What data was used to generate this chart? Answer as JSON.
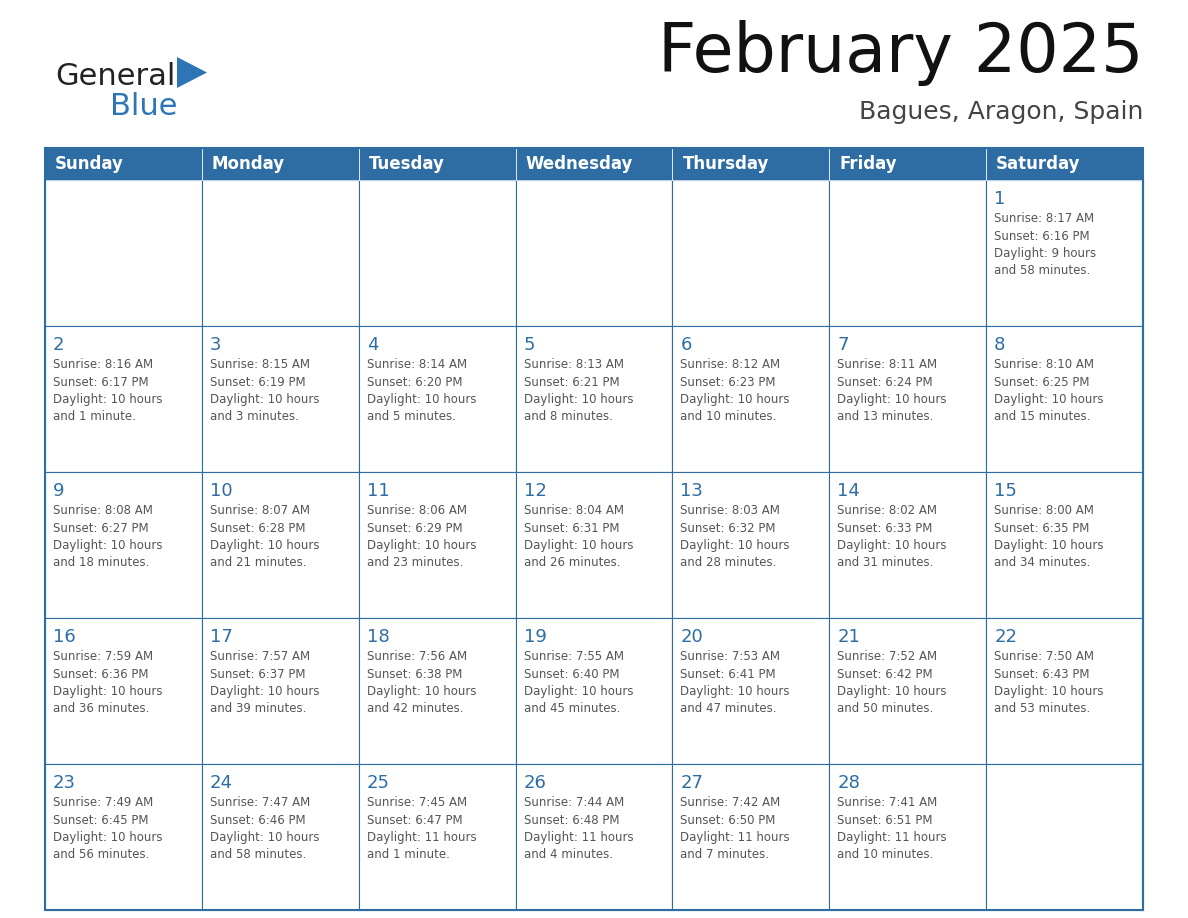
{
  "title": "February 2025",
  "subtitle": "Bagues, Aragon, Spain",
  "header_bg": "#2E6DA4",
  "header_text_color": "#FFFFFF",
  "cell_bg": "#FFFFFF",
  "cell_border_color": "#2E6DA4",
  "day_number_color": "#2E6DA4",
  "cell_text_color": "#555555",
  "cell_text_color_dark": "#333333",
  "days_of_week": [
    "Sunday",
    "Monday",
    "Tuesday",
    "Wednesday",
    "Thursday",
    "Friday",
    "Saturday"
  ],
  "weeks": [
    [
      {
        "day": null,
        "info": null
      },
      {
        "day": null,
        "info": null
      },
      {
        "day": null,
        "info": null
      },
      {
        "day": null,
        "info": null
      },
      {
        "day": null,
        "info": null
      },
      {
        "day": null,
        "info": null
      },
      {
        "day": 1,
        "info": "Sunrise: 8:17 AM\nSunset: 6:16 PM\nDaylight: 9 hours\nand 58 minutes."
      }
    ],
    [
      {
        "day": 2,
        "info": "Sunrise: 8:16 AM\nSunset: 6:17 PM\nDaylight: 10 hours\nand 1 minute."
      },
      {
        "day": 3,
        "info": "Sunrise: 8:15 AM\nSunset: 6:19 PM\nDaylight: 10 hours\nand 3 minutes."
      },
      {
        "day": 4,
        "info": "Sunrise: 8:14 AM\nSunset: 6:20 PM\nDaylight: 10 hours\nand 5 minutes."
      },
      {
        "day": 5,
        "info": "Sunrise: 8:13 AM\nSunset: 6:21 PM\nDaylight: 10 hours\nand 8 minutes."
      },
      {
        "day": 6,
        "info": "Sunrise: 8:12 AM\nSunset: 6:23 PM\nDaylight: 10 hours\nand 10 minutes."
      },
      {
        "day": 7,
        "info": "Sunrise: 8:11 AM\nSunset: 6:24 PM\nDaylight: 10 hours\nand 13 minutes."
      },
      {
        "day": 8,
        "info": "Sunrise: 8:10 AM\nSunset: 6:25 PM\nDaylight: 10 hours\nand 15 minutes."
      }
    ],
    [
      {
        "day": 9,
        "info": "Sunrise: 8:08 AM\nSunset: 6:27 PM\nDaylight: 10 hours\nand 18 minutes."
      },
      {
        "day": 10,
        "info": "Sunrise: 8:07 AM\nSunset: 6:28 PM\nDaylight: 10 hours\nand 21 minutes."
      },
      {
        "day": 11,
        "info": "Sunrise: 8:06 AM\nSunset: 6:29 PM\nDaylight: 10 hours\nand 23 minutes."
      },
      {
        "day": 12,
        "info": "Sunrise: 8:04 AM\nSunset: 6:31 PM\nDaylight: 10 hours\nand 26 minutes."
      },
      {
        "day": 13,
        "info": "Sunrise: 8:03 AM\nSunset: 6:32 PM\nDaylight: 10 hours\nand 28 minutes."
      },
      {
        "day": 14,
        "info": "Sunrise: 8:02 AM\nSunset: 6:33 PM\nDaylight: 10 hours\nand 31 minutes."
      },
      {
        "day": 15,
        "info": "Sunrise: 8:00 AM\nSunset: 6:35 PM\nDaylight: 10 hours\nand 34 minutes."
      }
    ],
    [
      {
        "day": 16,
        "info": "Sunrise: 7:59 AM\nSunset: 6:36 PM\nDaylight: 10 hours\nand 36 minutes."
      },
      {
        "day": 17,
        "info": "Sunrise: 7:57 AM\nSunset: 6:37 PM\nDaylight: 10 hours\nand 39 minutes."
      },
      {
        "day": 18,
        "info": "Sunrise: 7:56 AM\nSunset: 6:38 PM\nDaylight: 10 hours\nand 42 minutes."
      },
      {
        "day": 19,
        "info": "Sunrise: 7:55 AM\nSunset: 6:40 PM\nDaylight: 10 hours\nand 45 minutes."
      },
      {
        "day": 20,
        "info": "Sunrise: 7:53 AM\nSunset: 6:41 PM\nDaylight: 10 hours\nand 47 minutes."
      },
      {
        "day": 21,
        "info": "Sunrise: 7:52 AM\nSunset: 6:42 PM\nDaylight: 10 hours\nand 50 minutes."
      },
      {
        "day": 22,
        "info": "Sunrise: 7:50 AM\nSunset: 6:43 PM\nDaylight: 10 hours\nand 53 minutes."
      }
    ],
    [
      {
        "day": 23,
        "info": "Sunrise: 7:49 AM\nSunset: 6:45 PM\nDaylight: 10 hours\nand 56 minutes."
      },
      {
        "day": 24,
        "info": "Sunrise: 7:47 AM\nSunset: 6:46 PM\nDaylight: 10 hours\nand 58 minutes."
      },
      {
        "day": 25,
        "info": "Sunrise: 7:45 AM\nSunset: 6:47 PM\nDaylight: 11 hours\nand 1 minute."
      },
      {
        "day": 26,
        "info": "Sunrise: 7:44 AM\nSunset: 6:48 PM\nDaylight: 11 hours\nand 4 minutes."
      },
      {
        "day": 27,
        "info": "Sunrise: 7:42 AM\nSunset: 6:50 PM\nDaylight: 11 hours\nand 7 minutes."
      },
      {
        "day": 28,
        "info": "Sunrise: 7:41 AM\nSunset: 6:51 PM\nDaylight: 11 hours\nand 10 minutes."
      },
      {
        "day": null,
        "info": null
      }
    ]
  ],
  "logo_text1": "General",
  "logo_text2": "Blue",
  "logo_text1_color": "#222222",
  "logo_text2_color": "#2E75B6",
  "logo_triangle_color": "#2E75B6",
  "title_color": "#111111",
  "subtitle_color": "#444444"
}
